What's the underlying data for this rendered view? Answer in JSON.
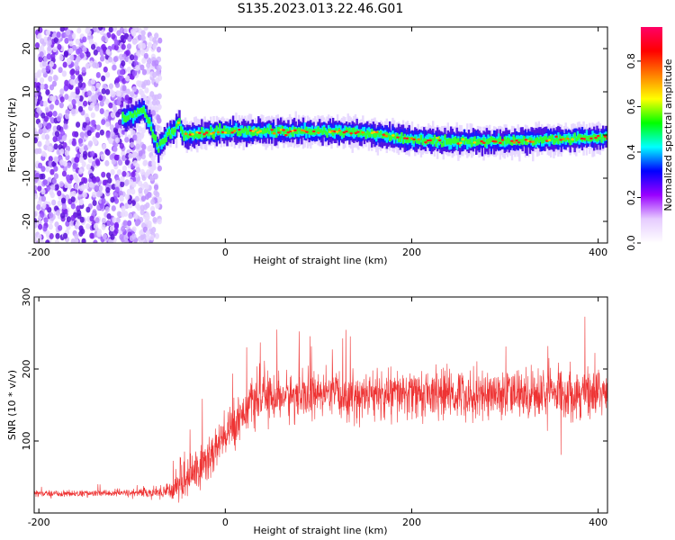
{
  "title": "S135.2023.013.22.46.G01",
  "chart_data": [
    {
      "type": "heatmap",
      "xlabel": "Height of straight line (km)",
      "ylabel": "Frequency (Hz)",
      "xlim": [
        -205,
        410
      ],
      "ylim": [
        -25,
        25
      ],
      "xticks": [
        -200,
        0,
        200,
        400
      ],
      "yticks": [
        -20,
        -10,
        0,
        10,
        20
      ],
      "grid": false,
      "colorbar": {
        "label": "Normalized spectral amplitude",
        "range": [
          0,
          0.95
        ],
        "ticks": [
          "0.0",
          "0.2",
          "0.4",
          "0.6",
          "0.8"
        ],
        "tick_values": [
          0,
          0.2,
          0.4,
          0.6,
          0.8
        ],
        "colormap": [
          "#ffffff",
          "#e6ccff",
          "#9900ff",
          "#0000ff",
          "#00ffff",
          "#00ff00",
          "#ffff00",
          "#ff7f00",
          "#ff0000",
          "#ff0066"
        ]
      },
      "ridge_x": [
        -200,
        -120,
        -105,
        -95,
        -88,
        -80,
        -72,
        -62,
        -55,
        -50,
        -45,
        -35,
        -20,
        0,
        50,
        100,
        150,
        200,
        250,
        300,
        350,
        410
      ],
      "ridge_y": [
        null,
        null,
        4,
        5,
        6,
        2,
        -3,
        0,
        1,
        3,
        0,
        0,
        0.5,
        0.8,
        0.8,
        0.8,
        0.5,
        -1,
        -1.5,
        -1.5,
        -1,
        -0.5
      ],
      "noise_region_x": [
        -205,
        -70
      ]
    },
    {
      "type": "line",
      "xlabel": "Height of straight line (km)",
      "ylabel": "SNR (10 * v/v)",
      "xlim": [
        -205,
        410
      ],
      "ylim": [
        0,
        300
      ],
      "xticks": [
        -200,
        0,
        200,
        400
      ],
      "yticks": [
        100,
        200,
        300
      ],
      "grid": false,
      "series": [
        {
          "color": "#ee3333",
          "x": [
            -205,
            -150,
            -100,
            -75,
            -60,
            -50,
            -40,
            -30,
            -20,
            -10,
            0,
            10,
            25,
            40,
            60,
            100,
            150,
            200,
            250,
            300,
            350,
            410
          ],
          "mean": [
            27,
            27,
            28,
            28,
            32,
            40,
            50,
            60,
            72,
            90,
            105,
            125,
            150,
            160,
            162,
            163,
            163,
            165,
            165,
            165,
            167,
            168
          ],
          "spread": [
            5,
            5,
            6,
            8,
            18,
            28,
            35,
            40,
            42,
            42,
            38,
            35,
            35,
            35,
            36,
            38,
            38,
            38,
            38,
            38,
            40,
            40
          ]
        }
      ]
    }
  ]
}
